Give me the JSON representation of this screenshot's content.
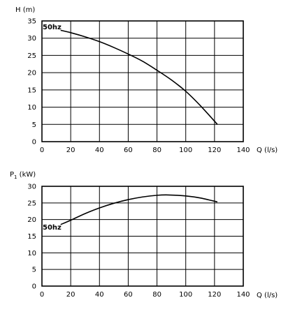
{
  "chart_data": [
    {
      "type": "line",
      "ylabel": "H (m)",
      "xlabel": "Q (l/s)",
      "xlim": [
        0,
        140
      ],
      "ylim": [
        0,
        35
      ],
      "x_ticks": [
        "0",
        "20",
        "40",
        "60",
        "80",
        "100",
        "120",
        "140"
      ],
      "y_ticks": [
        "0",
        "5",
        "10",
        "15",
        "20",
        "25",
        "30",
        "35"
      ],
      "grid": true,
      "series": [
        {
          "name": "50hz",
          "x": [
            13,
            20,
            30,
            40,
            50,
            60,
            70,
            80,
            90,
            100,
            110,
            122
          ],
          "y": [
            32.3,
            31.6,
            30.4,
            29.0,
            27.3,
            25.4,
            23.3,
            20.7,
            17.9,
            14.6,
            10.5,
            5.0
          ]
        }
      ]
    },
    {
      "type": "line",
      "ylabel_main": "P",
      "ylabel_sub": "1",
      "ylabel_unit": " (kW)",
      "xlabel": "Q (l/s)",
      "xlim": [
        0,
        140
      ],
      "ylim": [
        0,
        30
      ],
      "x_ticks": [
        "0",
        "20",
        "40",
        "60",
        "80",
        "100",
        "120",
        "140"
      ],
      "y_ticks": [
        "0",
        "5",
        "10",
        "15",
        "20",
        "25",
        "30"
      ],
      "grid": true,
      "series": [
        {
          "name": "50hz",
          "x": [
            13,
            20,
            30,
            40,
            50,
            60,
            70,
            80,
            88,
            100,
            110,
            122
          ],
          "y": [
            18.5,
            19.8,
            21.8,
            23.5,
            24.9,
            26.0,
            26.8,
            27.3,
            27.4,
            27.1,
            26.5,
            25.3
          ]
        }
      ]
    }
  ]
}
